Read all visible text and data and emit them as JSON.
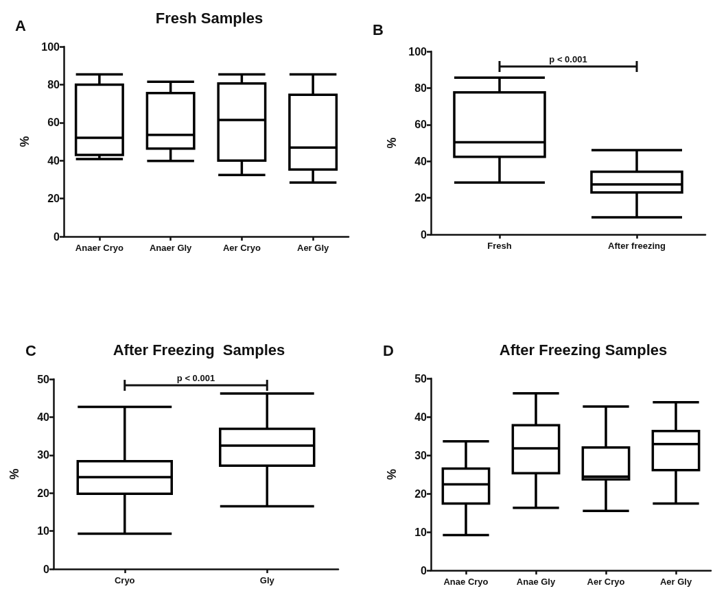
{
  "chart_data": [
    {
      "type": "box",
      "title": "Fresh Samples",
      "ylabel": "%",
      "annotations": [
        "A"
      ],
      "color": "#000000",
      "categories": [
        "Anaer Cryo",
        "Anaer Gly",
        "Aer Cryo",
        "Aer Gly"
      ],
      "boxes": [
        {
          "low": 40.8,
          "q1": 43,
          "median": 52,
          "q3": 80,
          "high": 85.4
        },
        {
          "low": 39.8,
          "q1": 46.3,
          "median": 53.5,
          "q3": 75.5,
          "high": 81.5
        },
        {
          "low": 32.4,
          "q1": 40,
          "median": 61.4,
          "q3": 80.6,
          "high": 85.4
        },
        {
          "low": 28.4,
          "q1": 35.3,
          "median": 46.8,
          "q3": 74.6,
          "high": 85.4
        }
      ],
      "ylim": [
        0,
        100
      ],
      "yticks": [
        0,
        20,
        40,
        60,
        80,
        100
      ]
    },
    {
      "type": "box",
      "ylabel": "%",
      "annotations": [
        "B",
        "p < 0.001"
      ],
      "color": "#000000",
      "categories": [
        "Fresh",
        "After freezing"
      ],
      "boxes": [
        {
          "low": 28.4,
          "q1": 42.4,
          "median": 50.4,
          "q3": 77.6,
          "high": 85.7
        },
        {
          "low": 9.4,
          "q1": 22.9,
          "median": 27.3,
          "q3": 34.3,
          "high": 46.1
        }
      ],
      "ylim": [
        0,
        100
      ],
      "yticks": [
        0,
        20,
        40,
        60,
        80,
        100
      ]
    },
    {
      "type": "box",
      "title": "After Freezing  Samples",
      "ylabel": "%",
      "annotations": [
        "C",
        "p < 0.001"
      ],
      "color": "#000000",
      "categories": [
        "Cryo",
        "Gly"
      ],
      "boxes": [
        {
          "low": 9.3,
          "q1": 19.8,
          "median": 24.2,
          "q3": 28.4,
          "high": 42.7
        },
        {
          "low": 16.5,
          "q1": 27.2,
          "median": 32.5,
          "q3": 36.9,
          "high": 46.2
        }
      ],
      "ylim": [
        0,
        50
      ],
      "yticks": [
        0,
        10,
        20,
        30,
        40,
        50
      ]
    },
    {
      "type": "box",
      "title": "After Freezing Samples",
      "ylabel": "%",
      "annotations": [
        "D"
      ],
      "color": "#000000",
      "categories": [
        "Anae Cryo",
        "Anae Gly",
        "Aer Cryo",
        "Aer Gly"
      ],
      "boxes": [
        {
          "low": 9.2,
          "q1": 17.4,
          "median": 22.4,
          "q3": 26.5,
          "high": 33.6
        },
        {
          "low": 16.3,
          "q1": 25.3,
          "median": 31.8,
          "q3": 37.8,
          "high": 46.1
        },
        {
          "low": 15.5,
          "q1": 23.7,
          "median": 24.4,
          "q3": 32,
          "high": 42.7
        },
        {
          "low": 17.4,
          "q1": 26.1,
          "median": 32.9,
          "q3": 36.3,
          "high": 43.8
        }
      ],
      "ylim": [
        0,
        50
      ],
      "yticks": [
        0,
        10,
        20,
        30,
        40,
        50
      ]
    }
  ]
}
